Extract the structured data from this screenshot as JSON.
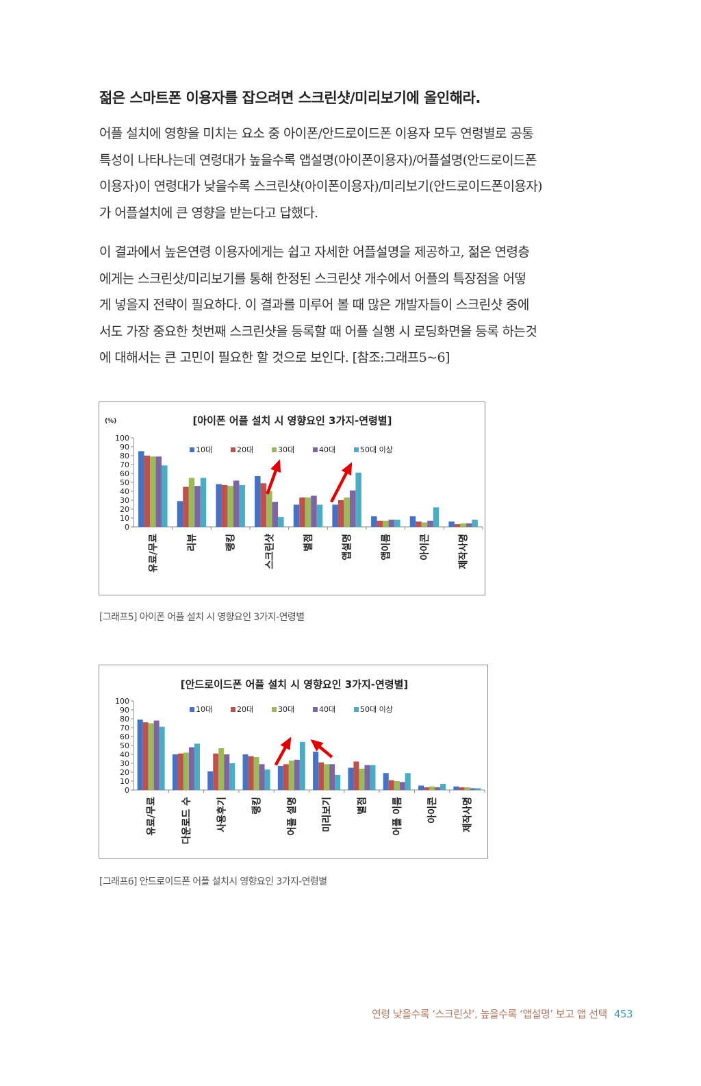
{
  "heading": "젊은 스마트폰 이용자를 잡으려면 스크린샷/미리보기에 올인해라.",
  "paragraph1": [
    "어플 설치에 영향을 미치는 요소 중 아이폰/안드로이드폰 이용자 모두 연령별로 공통",
    "특성이 나타나는데 연령대가 높을수록 앱설명(아이폰이용자)/어플설명(안드로이드폰",
    "이용자)이 연령대가 낮을수록 스크린샷(아이폰이용자)/미리보기(안드로이드폰이용자)",
    "가 어플설치에 큰 영향을 받는다고 답했다."
  ],
  "paragraph2": [
    "이 결과에서 높은연령 이용자에게는 쉽고 자세한 어플설명을 제공하고, 젊은 연령층",
    "에게는 스크린샷/미리보기를 통해 한정된 스크린샷 개수에서 어플의 특장점을 어떻",
    "게 넣을지 전략이 필요하다. 이 결과를 미루어 볼 때  많은 개발자들이 스크린샷 중에",
    "서도 가장 중요한 첫번째 스크린샷을 등록할 때 어플 실행 시 로딩화면을 등록 하는것",
    "에 대해서는 큰 고민이 필요한 할 것으로 보인다. [참조:그래프5~6]"
  ],
  "chart_data": [
    {
      "type": "bar",
      "title": "[아이폰 어플 설치 시 영향요인 3가지-연령별]",
      "ylabel": "(%)",
      "ylim": [
        0,
        100
      ],
      "yticks": [
        0,
        10,
        20,
        30,
        40,
        50,
        60,
        70,
        80,
        90,
        100
      ],
      "grid": false,
      "legend_position": "top",
      "categories": [
        "유료/무료",
        "리뷰",
        "랭킹",
        "스크린샷",
        "별점",
        "앱설명",
        "앱이름",
        "아이콘",
        "제작사명"
      ],
      "series": [
        {
          "name": "10대",
          "color": "#4472c4",
          "values": [
            85,
            29,
            48,
            57,
            25,
            25,
            12,
            12,
            6
          ]
        },
        {
          "name": "20대",
          "color": "#c0504d",
          "values": [
            80,
            45,
            47,
            49,
            33,
            30,
            7,
            6,
            3
          ]
        },
        {
          "name": "30대",
          "color": "#9bbb59",
          "values": [
            79,
            55,
            46,
            40,
            33,
            33,
            7,
            5,
            4
          ]
        },
        {
          "name": "40대",
          "color": "#8064a2",
          "values": [
            79,
            46,
            52,
            28,
            35,
            41,
            8,
            7,
            4
          ]
        },
        {
          "name": "50대 이상",
          "color": "#4bacc6",
          "values": [
            69,
            55,
            47,
            11,
            25,
            61,
            8,
            22,
            8
          ]
        }
      ],
      "arrow_color": "#e00000"
    },
    {
      "type": "bar",
      "title": "[안드로이드폰 어플 설치 시 영향요인 3가지-연령별]",
      "ylabel": "",
      "ylim": [
        0,
        100
      ],
      "yticks": [
        0,
        10,
        20,
        30,
        40,
        50,
        60,
        70,
        80,
        90,
        100
      ],
      "grid": false,
      "legend_position": "top",
      "categories": [
        "유료/무료",
        "다운로드 수",
        "사용후기",
        "랭킹",
        "어플 설명",
        "미리보기",
        "별점",
        "어플 이름",
        "아이콘",
        "제작사명"
      ],
      "series": [
        {
          "name": "10대",
          "color": "#4472c4",
          "values": [
            79,
            40,
            21,
            40,
            27,
            43,
            25,
            19,
            5,
            4
          ]
        },
        {
          "name": "20대",
          "color": "#c0504d",
          "values": [
            76,
            41,
            41,
            38,
            29,
            31,
            32,
            11,
            3,
            3
          ]
        },
        {
          "name": "30대",
          "color": "#9bbb59",
          "values": [
            75,
            42,
            47,
            37,
            33,
            29,
            24,
            10,
            4,
            3
          ]
        },
        {
          "name": "40대",
          "color": "#8064a2",
          "values": [
            78,
            48,
            40,
            29,
            34,
            29,
            28,
            9,
            3,
            2
          ]
        },
        {
          "name": "50대 이상",
          "color": "#4bacc6",
          "values": [
            71,
            52,
            30,
            23,
            54,
            17,
            28,
            19,
            7,
            2
          ]
        }
      ],
      "arrow_color": "#e00000"
    }
  ],
  "captions": {
    "graph5": "[그래프5] 아이폰 어플 설치 시 영향요인 3가지-연령별",
    "graph6": "[그래프6] 안드로이드폰 어플 설치시 영향요인 3가지-연령별"
  },
  "footer": {
    "text": "연령 낮을수록 ‘스크린샷’, 높을수록 ‘앱설명’ 보고 앱 선택",
    "page_number": "453"
  }
}
